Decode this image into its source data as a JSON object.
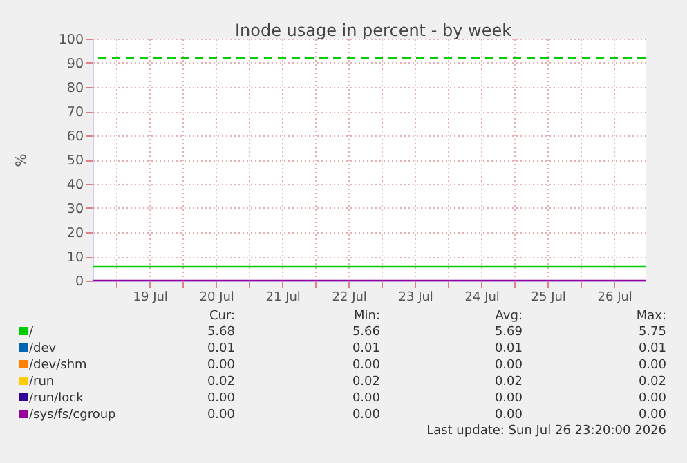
{
  "chart_data": {
    "type": "line",
    "title": "Inode usage in percent - by week",
    "ylabel": "%",
    "xlim": [
      "2026-07-18T15:20",
      "2026-07-26T23:20"
    ],
    "xticks": [
      {
        "value": "2026-07-19T00:00",
        "label": null
      },
      {
        "value": "2026-07-19T12:00",
        "label": "19 Jul"
      },
      {
        "value": "2026-07-20T00:00",
        "label": null
      },
      {
        "value": "2026-07-20T12:00",
        "label": "20 Jul"
      },
      {
        "value": "2026-07-21T00:00",
        "label": null
      },
      {
        "value": "2026-07-21T12:00",
        "label": "21 Jul"
      },
      {
        "value": "2026-07-22T00:00",
        "label": null
      },
      {
        "value": "2026-07-22T12:00",
        "label": "22 Jul"
      },
      {
        "value": "2026-07-23T00:00",
        "label": null
      },
      {
        "value": "2026-07-23T12:00",
        "label": "23 Jul"
      },
      {
        "value": "2026-07-24T00:00",
        "label": null
      },
      {
        "value": "2026-07-24T12:00",
        "label": "24 Jul"
      },
      {
        "value": "2026-07-25T00:00",
        "label": null
      },
      {
        "value": "2026-07-25T12:00",
        "label": "25 Jul"
      },
      {
        "value": "2026-07-26T00:00",
        "label": null
      },
      {
        "value": "2026-07-26T12:00",
        "label": "26 Jul"
      }
    ],
    "ylim": [
      0,
      100
    ],
    "yticks": [
      0,
      10,
      20,
      30,
      40,
      50,
      60,
      70,
      80,
      90,
      100
    ],
    "grid": true,
    "legend": "bottom",
    "marker": "none",
    "line_style": "solid",
    "series": [
      {
        "name": "/",
        "color": "#00cc00",
        "x": [
          "2026-07-18T15:20",
          "2026-07-26T23:20"
        ],
        "values": [
          5.7,
          5.7
        ]
      },
      {
        "name": "/dev",
        "color": "#0066b3"
      },
      {
        "name": "/dev/shm",
        "color": "#ff8000"
      },
      {
        "name": "/run",
        "color": "#ffcc00"
      },
      {
        "name": "/run/lock",
        "color": "#330099"
      },
      {
        "name": "/sys/fs/cgroup",
        "color": "#990099",
        "x": [
          "2026-07-18T15:20",
          "2026-07-26T23:20"
        ],
        "values": [
          0.0,
          0.0
        ]
      }
    ],
    "ref_lines": [
      {
        "axis": "y",
        "value": 92,
        "label": null,
        "color": "#00cc00",
        "line_style": "dashed"
      }
    ],
    "annotations": [
      "Cur:",
      "Min:",
      "Avg:",
      "Max:",
      "5.68",
      "5.66",
      "5.69",
      "5.75",
      "0.01",
      "0.01",
      "0.01",
      "0.01",
      "0.00",
      "0.00",
      "0.00",
      "0.00",
      "0.02",
      "0.02",
      "0.02",
      "0.02",
      "0.00",
      "0.00",
      "0.00",
      "0.00",
      "0.00",
      "0.00",
      "0.00",
      "0.00",
      "Last update: Sun Jul 26 23:20:00 2026"
    ]
  }
}
